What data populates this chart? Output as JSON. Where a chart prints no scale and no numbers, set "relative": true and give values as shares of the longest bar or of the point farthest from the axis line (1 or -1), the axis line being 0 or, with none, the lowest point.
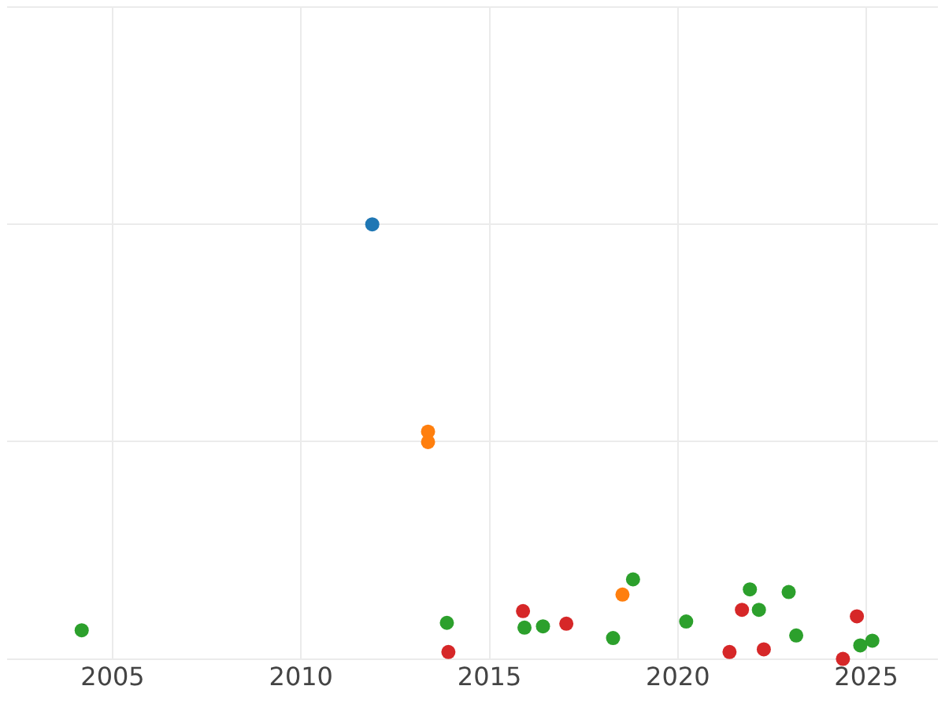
{
  "chart_data": {
    "type": "scatter",
    "relative": true,
    "grid": true,
    "marker": "circle",
    "xlim": [
      2002.2,
      2026.9
    ],
    "xticks": [
      2005,
      2010,
      2015,
      2020,
      2025
    ],
    "series": [
      {
        "color": "#1f77b4",
        "x": [
          2011.89
        ],
        "values": [
          1.0
        ]
      },
      {
        "color": "#ff7f0e",
        "x": [
          2013.37,
          2013.37,
          2018.53
        ],
        "values": [
          0.523,
          0.499,
          0.148
        ]
      },
      {
        "color": "#2ca02c",
        "x": [
          2004.18,
          2013.87,
          2015.93,
          2016.42,
          2018.28,
          2018.81,
          2020.22,
          2021.91,
          2022.15,
          2022.94,
          2023.14,
          2024.84,
          2025.16
        ],
        "values": [
          0.066,
          0.083,
          0.072,
          0.075,
          0.048,
          0.183,
          0.086,
          0.16,
          0.113,
          0.154,
          0.054,
          0.031,
          0.042
        ]
      },
      {
        "color": "#d62728",
        "x": [
          2013.91,
          2015.89,
          2017.04,
          2021.37,
          2021.7,
          2022.28,
          2024.38,
          2024.75
        ],
        "values": [
          0.016,
          0.11,
          0.081,
          0.016,
          0.113,
          0.022,
          0.0,
          0.098
        ]
      }
    ]
  }
}
